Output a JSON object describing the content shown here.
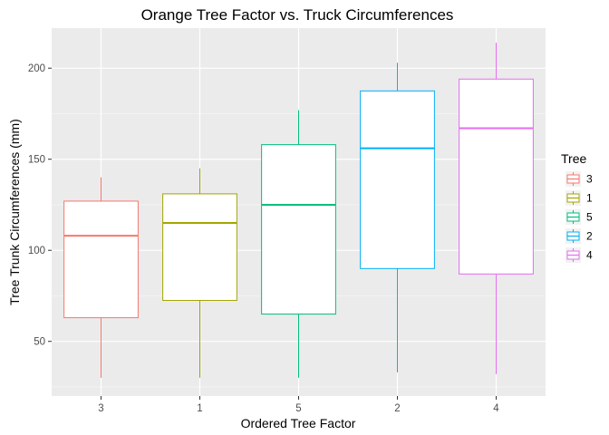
{
  "chart_data": {
    "type": "boxplot",
    "title": "Orange Tree Factor vs. Truck Circumferences",
    "xlabel": "Ordered Tree Factor",
    "ylabel": "Tree Trunk Circumferences (mm)",
    "categories": [
      "3",
      "1",
      "5",
      "2",
      "4"
    ],
    "ylim": [
      20,
      222
    ],
    "y_ticks": [
      50,
      100,
      150,
      200
    ],
    "y_tick_labels": [
      "50",
      "100",
      "150",
      "200"
    ],
    "grid": true,
    "legend_position": "right",
    "legend_title": "Tree",
    "series": [
      {
        "name": "3",
        "color": "#F8766D",
        "min": 30,
        "q1": 63,
        "median": 108,
        "q3": 127,
        "max": 140
      },
      {
        "name": "1",
        "color": "#A3A500",
        "min": 30,
        "q1": 72.5,
        "median": 115,
        "q3": 131,
        "max": 145
      },
      {
        "name": "5",
        "color": "#00BF7D",
        "min": 30,
        "q1": 65,
        "median": 125,
        "q3": 158,
        "max": 177
      },
      {
        "name": "2",
        "color": "#00B0F6",
        "min": 33,
        "q1": 90,
        "median": 156,
        "q3": 187.5,
        "max": 203
      },
      {
        "name": "4",
        "color": "#E76BF3",
        "min": 32,
        "q1": 87,
        "median": 167,
        "q3": 194,
        "max": 214
      }
    ]
  }
}
